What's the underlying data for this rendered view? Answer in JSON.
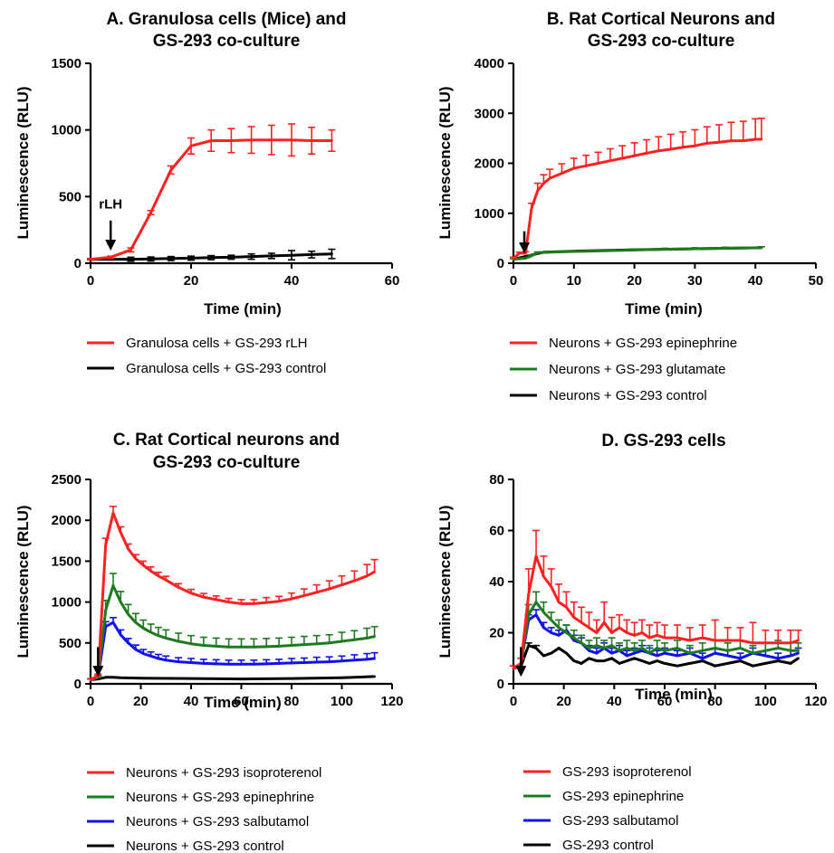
{
  "chart_data": [
    {
      "panel": "A",
      "type": "line",
      "title": [
        "A. Granulosa cells (Mice) and",
        "GS-293 co-culture"
      ],
      "xlabel": "Time (min)",
      "ylabel": "Luminescence (RLU)",
      "xlim": [
        0,
        60
      ],
      "ylim": [
        0,
        1500
      ],
      "xticks": [
        0,
        20,
        40,
        60
      ],
      "yticks": [
        0,
        500,
        1000,
        1500
      ],
      "annotations": [
        {
          "text": "rLH",
          "x": 4,
          "y": 160
        }
      ],
      "series": [
        {
          "name": "Granulosa cells + GS-293 rLH",
          "color": "#ff2020",
          "x": [
            0,
            4,
            8,
            12,
            16,
            20,
            24,
            28,
            32,
            36,
            40,
            44,
            48
          ],
          "y": [
            30,
            45,
            100,
            380,
            700,
            880,
            920,
            920,
            925,
            925,
            925,
            920,
            920
          ],
          "err": [
            5,
            8,
            15,
            15,
            30,
            60,
            80,
            90,
            100,
            110,
            120,
            100,
            80
          ]
        },
        {
          "name": "Granulosa cells + GS-293 control",
          "color": "#000000",
          "x": [
            0,
            4,
            8,
            12,
            16,
            20,
            24,
            28,
            32,
            36,
            40,
            44,
            48
          ],
          "y": [
            30,
            30,
            30,
            32,
            35,
            38,
            42,
            45,
            50,
            55,
            60,
            65,
            70
          ],
          "err": [
            5,
            5,
            15,
            15,
            15,
            15,
            15,
            15,
            20,
            20,
            35,
            25,
            35
          ]
        }
      ]
    },
    {
      "panel": "B",
      "type": "line",
      "title": [
        "B. Rat Cortical Neurons and",
        "GS-293 co-culture"
      ],
      "xlabel": "Time (min)",
      "ylabel": "Luminescence (RLU)",
      "xlim": [
        0,
        50
      ],
      "ylim": [
        0,
        4000
      ],
      "xticks": [
        0,
        10,
        20,
        30,
        40,
        50
      ],
      "yticks": [
        0,
        1000,
        2000,
        3000,
        4000
      ],
      "arrow_x": 1.8,
      "series": [
        {
          "name": "Neurons + GS-293 epinephrine",
          "color": "#ff2020",
          "x": [
            0,
            1,
            2,
            3,
            4,
            5,
            6,
            8,
            10,
            12,
            14,
            16,
            18,
            20,
            22,
            24,
            26,
            28,
            30,
            32,
            34,
            36,
            38,
            40,
            41
          ],
          "y": [
            100,
            200,
            200,
            1100,
            1450,
            1600,
            1700,
            1800,
            1900,
            1950,
            2000,
            2050,
            2100,
            2150,
            2200,
            2250,
            2280,
            2320,
            2350,
            2400,
            2420,
            2450,
            2450,
            2480,
            2480
          ],
          "err": [
            20,
            20,
            30,
            100,
            150,
            170,
            180,
            190,
            200,
            210,
            220,
            240,
            250,
            260,
            270,
            280,
            300,
            310,
            320,
            330,
            350,
            370,
            390,
            410,
            420
          ]
        },
        {
          "name": "Neurons + GS-293 glutamate",
          "color": "#1e7a1e",
          "x": [
            0,
            2,
            3,
            4,
            6,
            10,
            15,
            20,
            25,
            30,
            35,
            41
          ],
          "y": [
            80,
            100,
            150,
            210,
            220,
            235,
            250,
            265,
            280,
            290,
            300,
            310
          ],
          "err": [
            10,
            10,
            15,
            15,
            15,
            15,
            20,
            20,
            20,
            20,
            20,
            20
          ]
        },
        {
          "name": "Neurons + GS-293 control",
          "color": "#000000",
          "x": [
            0,
            5,
            10,
            20,
            30,
            41
          ],
          "y": [
            80,
            220,
            240,
            270,
            290,
            310
          ],
          "err": [
            0,
            0,
            0,
            0,
            0,
            0
          ]
        }
      ]
    },
    {
      "panel": "C",
      "type": "line",
      "title": [
        "C. Rat Cortical neurons and",
        "GS-293 co-culture"
      ],
      "xlabel": "Time (min)",
      "ylabel": "Luminescence (RLU)",
      "xlim": [
        0,
        120
      ],
      "ylim": [
        0,
        2500
      ],
      "xticks": [
        0,
        20,
        40,
        60,
        80,
        100,
        120
      ],
      "yticks": [
        0,
        500,
        1000,
        1500,
        2000,
        2500
      ],
      "arrow_x": 3,
      "series": [
        {
          "name": "Neurons + GS-293 isoproterenol",
          "color": "#ff2020",
          "x": [
            0,
            3,
            6,
            9,
            12,
            15,
            18,
            21,
            24,
            27,
            30,
            35,
            40,
            45,
            50,
            55,
            60,
            65,
            70,
            75,
            80,
            85,
            90,
            95,
            100,
            105,
            110,
            113
          ],
          "y": [
            50,
            100,
            1700,
            2090,
            1850,
            1650,
            1530,
            1450,
            1380,
            1320,
            1270,
            1180,
            1110,
            1060,
            1030,
            1000,
            980,
            980,
            995,
            1010,
            1040,
            1080,
            1120,
            1160,
            1210,
            1260,
            1320,
            1370
          ],
          "err": [
            10,
            20,
            80,
            80,
            70,
            60,
            50,
            50,
            50,
            45,
            45,
            45,
            45,
            45,
            45,
            45,
            50,
            50,
            60,
            60,
            70,
            80,
            90,
            100,
            110,
            120,
            140,
            150
          ]
        },
        {
          "name": "Neurons + GS-293 epinephrine",
          "color": "#1e7a1e",
          "x": [
            0,
            3,
            6,
            9,
            12,
            15,
            18,
            21,
            24,
            27,
            30,
            35,
            40,
            45,
            50,
            55,
            60,
            65,
            70,
            75,
            80,
            85,
            90,
            95,
            100,
            105,
            110,
            113
          ],
          "y": [
            50,
            80,
            900,
            1200,
            1000,
            850,
            750,
            680,
            630,
            590,
            560,
            520,
            490,
            470,
            460,
            450,
            450,
            450,
            455,
            460,
            470,
            480,
            490,
            500,
            520,
            540,
            560,
            580
          ],
          "err": [
            10,
            20,
            120,
            150,
            130,
            120,
            110,
            100,
            100,
            100,
            100,
            100,
            100,
            100,
            100,
            100,
            100,
            100,
            100,
            100,
            100,
            100,
            100,
            100,
            110,
            110,
            120,
            120
          ]
        },
        {
          "name": "Neurons + GS-293 salbutamol",
          "color": "#1010ee",
          "x": [
            0,
            3,
            6,
            9,
            12,
            15,
            18,
            21,
            24,
            27,
            30,
            35,
            40,
            45,
            50,
            55,
            60,
            65,
            70,
            75,
            80,
            85,
            90,
            95,
            100,
            105,
            110,
            113
          ],
          "y": [
            50,
            80,
            700,
            750,
            600,
            500,
            420,
            370,
            340,
            310,
            290,
            270,
            260,
            250,
            245,
            240,
            240,
            240,
            245,
            250,
            255,
            260,
            265,
            270,
            280,
            290,
            300,
            310
          ],
          "err": [
            10,
            20,
            60,
            60,
            60,
            55,
            55,
            50,
            50,
            50,
            50,
            50,
            50,
            50,
            50,
            50,
            50,
            50,
            50,
            50,
            55,
            55,
            60,
            60,
            60,
            65,
            70,
            70
          ]
        },
        {
          "name": "Neurons + GS-293 control",
          "color": "#000000",
          "x": [
            0,
            3,
            6,
            9,
            12,
            20,
            40,
            60,
            80,
            100,
            113
          ],
          "y": [
            50,
            60,
            80,
            80,
            75,
            70,
            65,
            60,
            65,
            75,
            90
          ],
          "err": [
            0,
            0,
            0,
            0,
            0,
            0,
            0,
            0,
            0,
            0,
            0
          ]
        }
      ]
    },
    {
      "panel": "D",
      "type": "line",
      "title": [
        "D. GS-293 cells"
      ],
      "xlabel": "Time (min)",
      "ylabel": "Luminescence (RLU)",
      "xlim": [
        0,
        120
      ],
      "ylim": [
        0,
        80
      ],
      "xticks": [
        0,
        20,
        40,
        60,
        80,
        100,
        120
      ],
      "yticks": [
        0,
        20,
        40,
        60,
        80
      ],
      "arrow_x": 3,
      "series": [
        {
          "name": "GS-293 isoproterenol",
          "color": "#ff2020",
          "x": [
            0,
            3,
            6,
            9,
            12,
            15,
            18,
            21,
            24,
            27,
            30,
            33,
            36,
            39,
            42,
            45,
            48,
            51,
            54,
            57,
            60,
            65,
            70,
            75,
            80,
            85,
            90,
            95,
            100,
            105,
            110,
            113
          ],
          "y": [
            6,
            8,
            35,
            50,
            42,
            38,
            32,
            30,
            26,
            24,
            22,
            20,
            24,
            20,
            22,
            20,
            19,
            20,
            18,
            19,
            18,
            18,
            17,
            18,
            17,
            17,
            17,
            16,
            16,
            16,
            16,
            17
          ],
          "err": [
            1,
            2,
            10,
            10,
            8,
            7,
            7,
            6,
            6,
            6,
            6,
            5,
            8,
            6,
            5,
            5,
            5,
            5,
            5,
            5,
            5,
            5,
            5,
            5,
            8,
            5,
            5,
            8,
            5,
            5,
            5,
            4
          ]
        },
        {
          "name": "GS-293 epinephrine",
          "color": "#1e7a1e",
          "x": [
            0,
            3,
            6,
            9,
            12,
            15,
            18,
            21,
            24,
            27,
            30,
            33,
            36,
            39,
            42,
            45,
            48,
            51,
            54,
            57,
            60,
            65,
            70,
            75,
            80,
            85,
            90,
            95,
            100,
            105,
            110,
            113
          ],
          "y": [
            6,
            8,
            27,
            32,
            28,
            25,
            22,
            20,
            18,
            16,
            14,
            15,
            14,
            15,
            13,
            14,
            13,
            14,
            12,
            14,
            13,
            14,
            12,
            13,
            14,
            13,
            14,
            12,
            13,
            14,
            13,
            13
          ],
          "err": [
            1,
            2,
            4,
            4,
            4,
            3,
            3,
            3,
            3,
            3,
            3,
            3,
            3,
            3,
            3,
            3,
            3,
            3,
            3,
            3,
            3,
            3,
            3,
            3,
            3,
            3,
            3,
            3,
            3,
            3,
            3,
            3
          ]
        },
        {
          "name": "GS-293 salbutamol",
          "color": "#1010ee",
          "x": [
            0,
            3,
            6,
            9,
            12,
            15,
            18,
            21,
            24,
            27,
            30,
            33,
            36,
            39,
            42,
            45,
            48,
            51,
            54,
            57,
            60,
            65,
            70,
            75,
            80,
            85,
            90,
            95,
            100,
            105,
            110,
            113
          ],
          "y": [
            6,
            8,
            25,
            27,
            22,
            20,
            19,
            21,
            17,
            16,
            13,
            12,
            14,
            12,
            13,
            11,
            12,
            13,
            12,
            11,
            12,
            11,
            12,
            10,
            12,
            11,
            10,
            12,
            11,
            10,
            11,
            12
          ],
          "err": [
            1,
            2,
            2,
            2,
            2,
            2,
            2,
            2,
            2,
            2,
            2,
            2,
            2,
            2,
            2,
            2,
            2,
            2,
            2,
            2,
            2,
            2,
            2,
            2,
            2,
            2,
            2,
            2,
            2,
            2,
            2,
            2
          ]
        },
        {
          "name": "GS-293 control",
          "color": "#000000",
          "x": [
            0,
            3,
            6,
            9,
            12,
            15,
            18,
            21,
            24,
            27,
            30,
            33,
            36,
            39,
            42,
            45,
            48,
            51,
            54,
            57,
            60,
            65,
            70,
            75,
            80,
            85,
            90,
            95,
            100,
            105,
            110,
            113
          ],
          "y": [
            6,
            7,
            15,
            14,
            11,
            12,
            14,
            12,
            9,
            8,
            10,
            9,
            9,
            10,
            8,
            9,
            10,
            9,
            8,
            9,
            8,
            7,
            8,
            9,
            7,
            8,
            9,
            7,
            8,
            9,
            8,
            10
          ],
          "err": [
            0,
            0,
            1,
            1,
            0,
            0,
            0,
            0,
            0,
            0,
            0,
            0,
            0,
            0,
            0,
            0,
            0,
            0,
            0,
            0,
            0,
            0,
            0,
            0,
            0,
            0,
            0,
            0,
            0,
            0,
            0,
            0
          ]
        }
      ]
    }
  ]
}
